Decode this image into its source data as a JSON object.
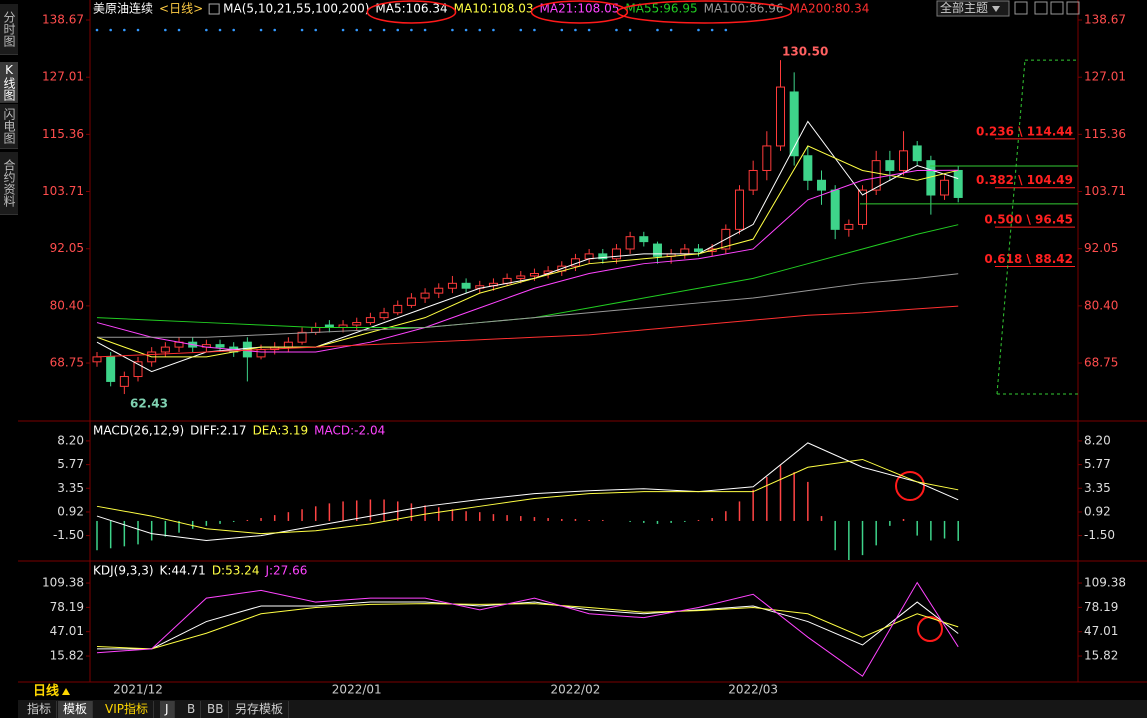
{
  "sidebar": [
    "分时图",
    "K线图",
    "闪电图",
    "合约资料"
  ],
  "theme_button": "全部主题",
  "period": "日线",
  "bottom_tabs": [
    "指标",
    "模板",
    "VIP指标",
    "J",
    "B",
    "BB",
    "另存模板"
  ],
  "chart_data": [
    {
      "type": "candlestick",
      "title": "美原油连续",
      "subtitle": "<日线>",
      "indicator": "MA(5,10,21,55,100,200)",
      "categories": [
        null,
        null,
        null,
        "2021/12",
        null,
        null,
        null,
        null,
        null,
        null,
        null,
        null,
        null,
        null,
        null,
        null,
        null,
        null,
        null,
        "2022/01",
        null,
        null,
        null,
        null,
        null,
        null,
        null,
        null,
        null,
        null,
        null,
        null,
        null,
        null,
        null,
        "2022/02",
        null,
        null,
        null,
        null,
        null,
        null,
        null,
        null,
        null,
        null,
        null,
        null,
        "2022/03",
        null,
        null,
        null,
        null,
        null,
        null,
        null,
        null,
        null,
        null,
        null,
        null,
        null,
        null,
        null
      ],
      "open": [
        69,
        70,
        64,
        66,
        69,
        71,
        72,
        73,
        72,
        72.5,
        72,
        73,
        70,
        71.5,
        72,
        73,
        75,
        76.5,
        76,
        76.5,
        77,
        78,
        79,
        80.5,
        82,
        83,
        84,
        85,
        84,
        84.5,
        85,
        86,
        86.5,
        87,
        87.5,
        88.5,
        90,
        91,
        90,
        92,
        94.5,
        93,
        90.5,
        91,
        92,
        91.5,
        92,
        96,
        104,
        108,
        113,
        124,
        111,
        106,
        104,
        96,
        97,
        104,
        110,
        108,
        113,
        110,
        103,
        108
      ],
      "high": [
        71,
        71,
        67,
        70,
        72,
        73,
        74,
        74,
        73.5,
        73.5,
        73,
        74,
        72.5,
        73,
        74,
        76,
        77,
        77.5,
        77.5,
        78,
        79,
        80,
        81.5,
        83,
        84,
        85,
        86.5,
        86,
        85.5,
        86,
        87,
        87.5,
        88,
        88.5,
        89.5,
        91,
        92,
        92,
        93,
        95.5,
        95.5,
        93.5,
        92,
        93,
        93,
        93,
        97,
        105,
        110,
        116,
        130.5,
        128,
        113,
        108,
        105,
        98,
        105,
        112,
        112,
        116,
        114,
        111,
        107,
        109
      ],
      "low": [
        68,
        64,
        62.43,
        65,
        68,
        70,
        71,
        71,
        71,
        71,
        70,
        65,
        69.5,
        70.5,
        71,
        72.5,
        74.5,
        75,
        75,
        75.5,
        76.5,
        77.5,
        78.5,
        80,
        81,
        82,
        83,
        83,
        83,
        83.5,
        84.5,
        85,
        85.5,
        86,
        86.5,
        87.5,
        89,
        89,
        89,
        91,
        92.5,
        89,
        89,
        90,
        90.5,
        90.5,
        91,
        95,
        103,
        106,
        112,
        109,
        104,
        101,
        94,
        94.5,
        96,
        103,
        106,
        107,
        109,
        99,
        102,
        101.5
      ],
      "close": [
        70,
        65,
        66,
        69,
        71,
        72,
        73,
        72,
        72.5,
        72,
        71,
        70,
        71.5,
        72,
        73,
        75,
        76,
        76,
        76.5,
        77,
        78,
        79,
        80.5,
        82,
        83,
        84,
        85,
        84,
        84.5,
        85,
        86,
        86.5,
        87,
        87.5,
        88.5,
        90,
        91,
        90,
        92,
        94.5,
        93.5,
        90.5,
        91,
        92,
        91.5,
        92,
        96,
        104,
        108,
        113,
        125,
        111,
        106,
        104,
        96,
        97,
        104,
        110,
        108,
        112,
        110,
        103,
        106,
        102.5
      ],
      "up_color": "#ff3b3b",
      "down_color": "#3ed48a",
      "ylim": [
        57.14,
        140.3
      ],
      "yticks": [
        138.67,
        127.01,
        115.36,
        103.71,
        92.05,
        {
          "value": 80.4,
          "label": "80.40"
        },
        68.75
      ],
      "tick_color": "#ff4d4d",
      "max_label": {
        "value": 130.5,
        "label": "130.50"
      },
      "min_label": 62.43,
      "x": [
        0,
        4,
        8,
        12,
        16,
        20,
        24,
        28,
        32,
        36,
        40,
        44,
        48,
        52,
        56,
        60,
        63
      ],
      "series": [
        {
          "name": "MA5:106.34",
          "color": "#ffffff",
          "values": [
            73,
            67,
            71,
            72,
            72,
            76,
            80,
            84,
            86,
            90,
            91,
            91,
            97,
            118,
            103,
            109,
            106.34
          ]
        },
        {
          "name": "MA10:108.03",
          "color": "#ffff44",
          "values": [
            74,
            70,
            70,
            72,
            72,
            75,
            78,
            83,
            86,
            89,
            90,
            91,
            94,
            113,
            108,
            106,
            108.03
          ]
        },
        {
          "name": "MA21:108.05",
          "color": "#ff44ff",
          "values": [
            77,
            74,
            72,
            71,
            71,
            73,
            76,
            80,
            84,
            87,
            89,
            90,
            92,
            102,
            106,
            108,
            108.05
          ]
        },
        {
          "name": "MA55:96.95",
          "color": "#22cc22",
          "values": [
            78,
            77.5,
            77,
            76.5,
            76,
            76,
            76,
            77,
            78,
            80,
            82,
            84,
            86,
            89,
            92,
            95,
            96.95
          ]
        },
        {
          "name": "MA100:86.96",
          "color": "#999999",
          "values": [
            74,
            74,
            74,
            74.5,
            75,
            75.5,
            76,
            77,
            78,
            79,
            80,
            81,
            82,
            83.5,
            85,
            86,
            86.96
          ]
        },
        {
          "name": "MA200:80.34",
          "color": "#ff3030",
          "values": [
            70,
            70.5,
            71,
            71.5,
            72,
            72.5,
            73,
            73.5,
            74,
            74.5,
            75.5,
            76.5,
            77.5,
            78.5,
            79,
            79.8,
            80.34
          ]
        }
      ],
      "fib_levels": [
        {
          "value": 114.44,
          "label": "0.236 \\ 114.44"
        },
        {
          "value": 104.49,
          "label": "0.382 \\ 104.49"
        },
        {
          "value": 96.45,
          "label": "0.500 \\ 96.45"
        },
        {
          "value": 88.42,
          "label": "0.618 \\ 88.42"
        }
      ],
      "fib_color": "#ff2020",
      "guide_lines": [
        108.9,
        101.2
      ],
      "guide_color": "#33cc33"
    },
    {
      "type": "macd",
      "title": "MACD(26,12,9)",
      "histogram": {
        "name": "MACD:-2.04",
        "legend_color": "#ff44ff",
        "up_color": "#ff4444",
        "down_color": "#3ed48a",
        "values": [
          -3,
          -2.8,
          -2.6,
          -2.4,
          -2,
          -1.6,
          -1.2,
          -0.8,
          -0.5,
          -0.3,
          -0.1,
          0.1,
          0.3,
          0.6,
          0.9,
          1.2,
          1.5,
          1.8,
          2.0,
          2.1,
          2.2,
          2.2,
          2.0,
          1.8,
          1.6,
          1.4,
          1.2,
          1.0,
          0.9,
          0.7,
          0.6,
          0.5,
          0.4,
          0.3,
          0.2,
          0.2,
          0.1,
          0.1,
          0,
          -0.1,
          -0.2,
          -0.3,
          -0.2,
          -0.1,
          0.1,
          0.3,
          1.0,
          2.0,
          3.2,
          4.5,
          5.7,
          5.0,
          4.0,
          0.5,
          -3.0,
          -4.0,
          -3.5,
          -2.5,
          -0.5,
          0.2,
          -1.5,
          -2.0,
          -1.8,
          -2.04
        ]
      },
      "x": [
        0,
        4,
        8,
        12,
        16,
        20,
        24,
        28,
        32,
        36,
        40,
        44,
        48,
        52,
        56,
        60,
        63
      ],
      "series": [
        {
          "name": "DIFF:2.17",
          "color": "#ffffff",
          "values": [
            0.5,
            -1.3,
            -2,
            -1.5,
            -0.5,
            0.5,
            1.5,
            2.2,
            2.8,
            3.1,
            3.3,
            3.0,
            3.5,
            8.0,
            5.5,
            4.0,
            2.17
          ]
        },
        {
          "name": "DEA:3.19",
          "color": "#ffff44",
          "values": [
            1.5,
            0.5,
            -0.8,
            -1.3,
            -1.0,
            -0.3,
            0.7,
            1.5,
            2.3,
            2.8,
            3.0,
            3.0,
            3.0,
            5.5,
            6.3,
            4.0,
            3.19
          ]
        }
      ],
      "ylim": [
        -4.0,
        9.83
      ],
      "yticks": [
        {
          "value": 8.2,
          "label": "8.20"
        },
        5.77,
        3.35,
        0.92,
        {
          "value": -1.5,
          "label": "-1.50"
        }
      ],
      "tick_color": "#dddddd"
    },
    {
      "type": "kdj",
      "title": "KDJ(9,3,3)",
      "x": [
        0,
        4,
        8,
        12,
        16,
        20,
        24,
        28,
        32,
        36,
        40,
        44,
        48,
        52,
        56,
        60,
        63
      ],
      "series": [
        {
          "name": "K:44.71",
          "color": "#ffffff",
          "values": [
            25,
            25,
            60,
            80,
            80,
            85,
            85,
            80,
            85,
            75,
            70,
            75,
            80,
            60,
            30,
            85,
            44.71
          ]
        },
        {
          "name": "D:53.24",
          "color": "#ffff44",
          "values": [
            28,
            25,
            45,
            70,
            78,
            82,
            83,
            82,
            83,
            78,
            72,
            74,
            78,
            70,
            40,
            70,
            53.24
          ]
        },
        {
          "name": "J:27.66",
          "color": "#ff44ff",
          "values": [
            20,
            25,
            90,
            100,
            85,
            90,
            90,
            75,
            90,
            70,
            65,
            78,
            95,
            40,
            -10,
            110,
            27.66
          ]
        }
      ],
      "ylim": [
        -14.9,
        132.5
      ],
      "yticks": [
        109.38,
        78.19,
        47.01,
        15.82
      ],
      "tick_color": "#dddddd"
    }
  ]
}
